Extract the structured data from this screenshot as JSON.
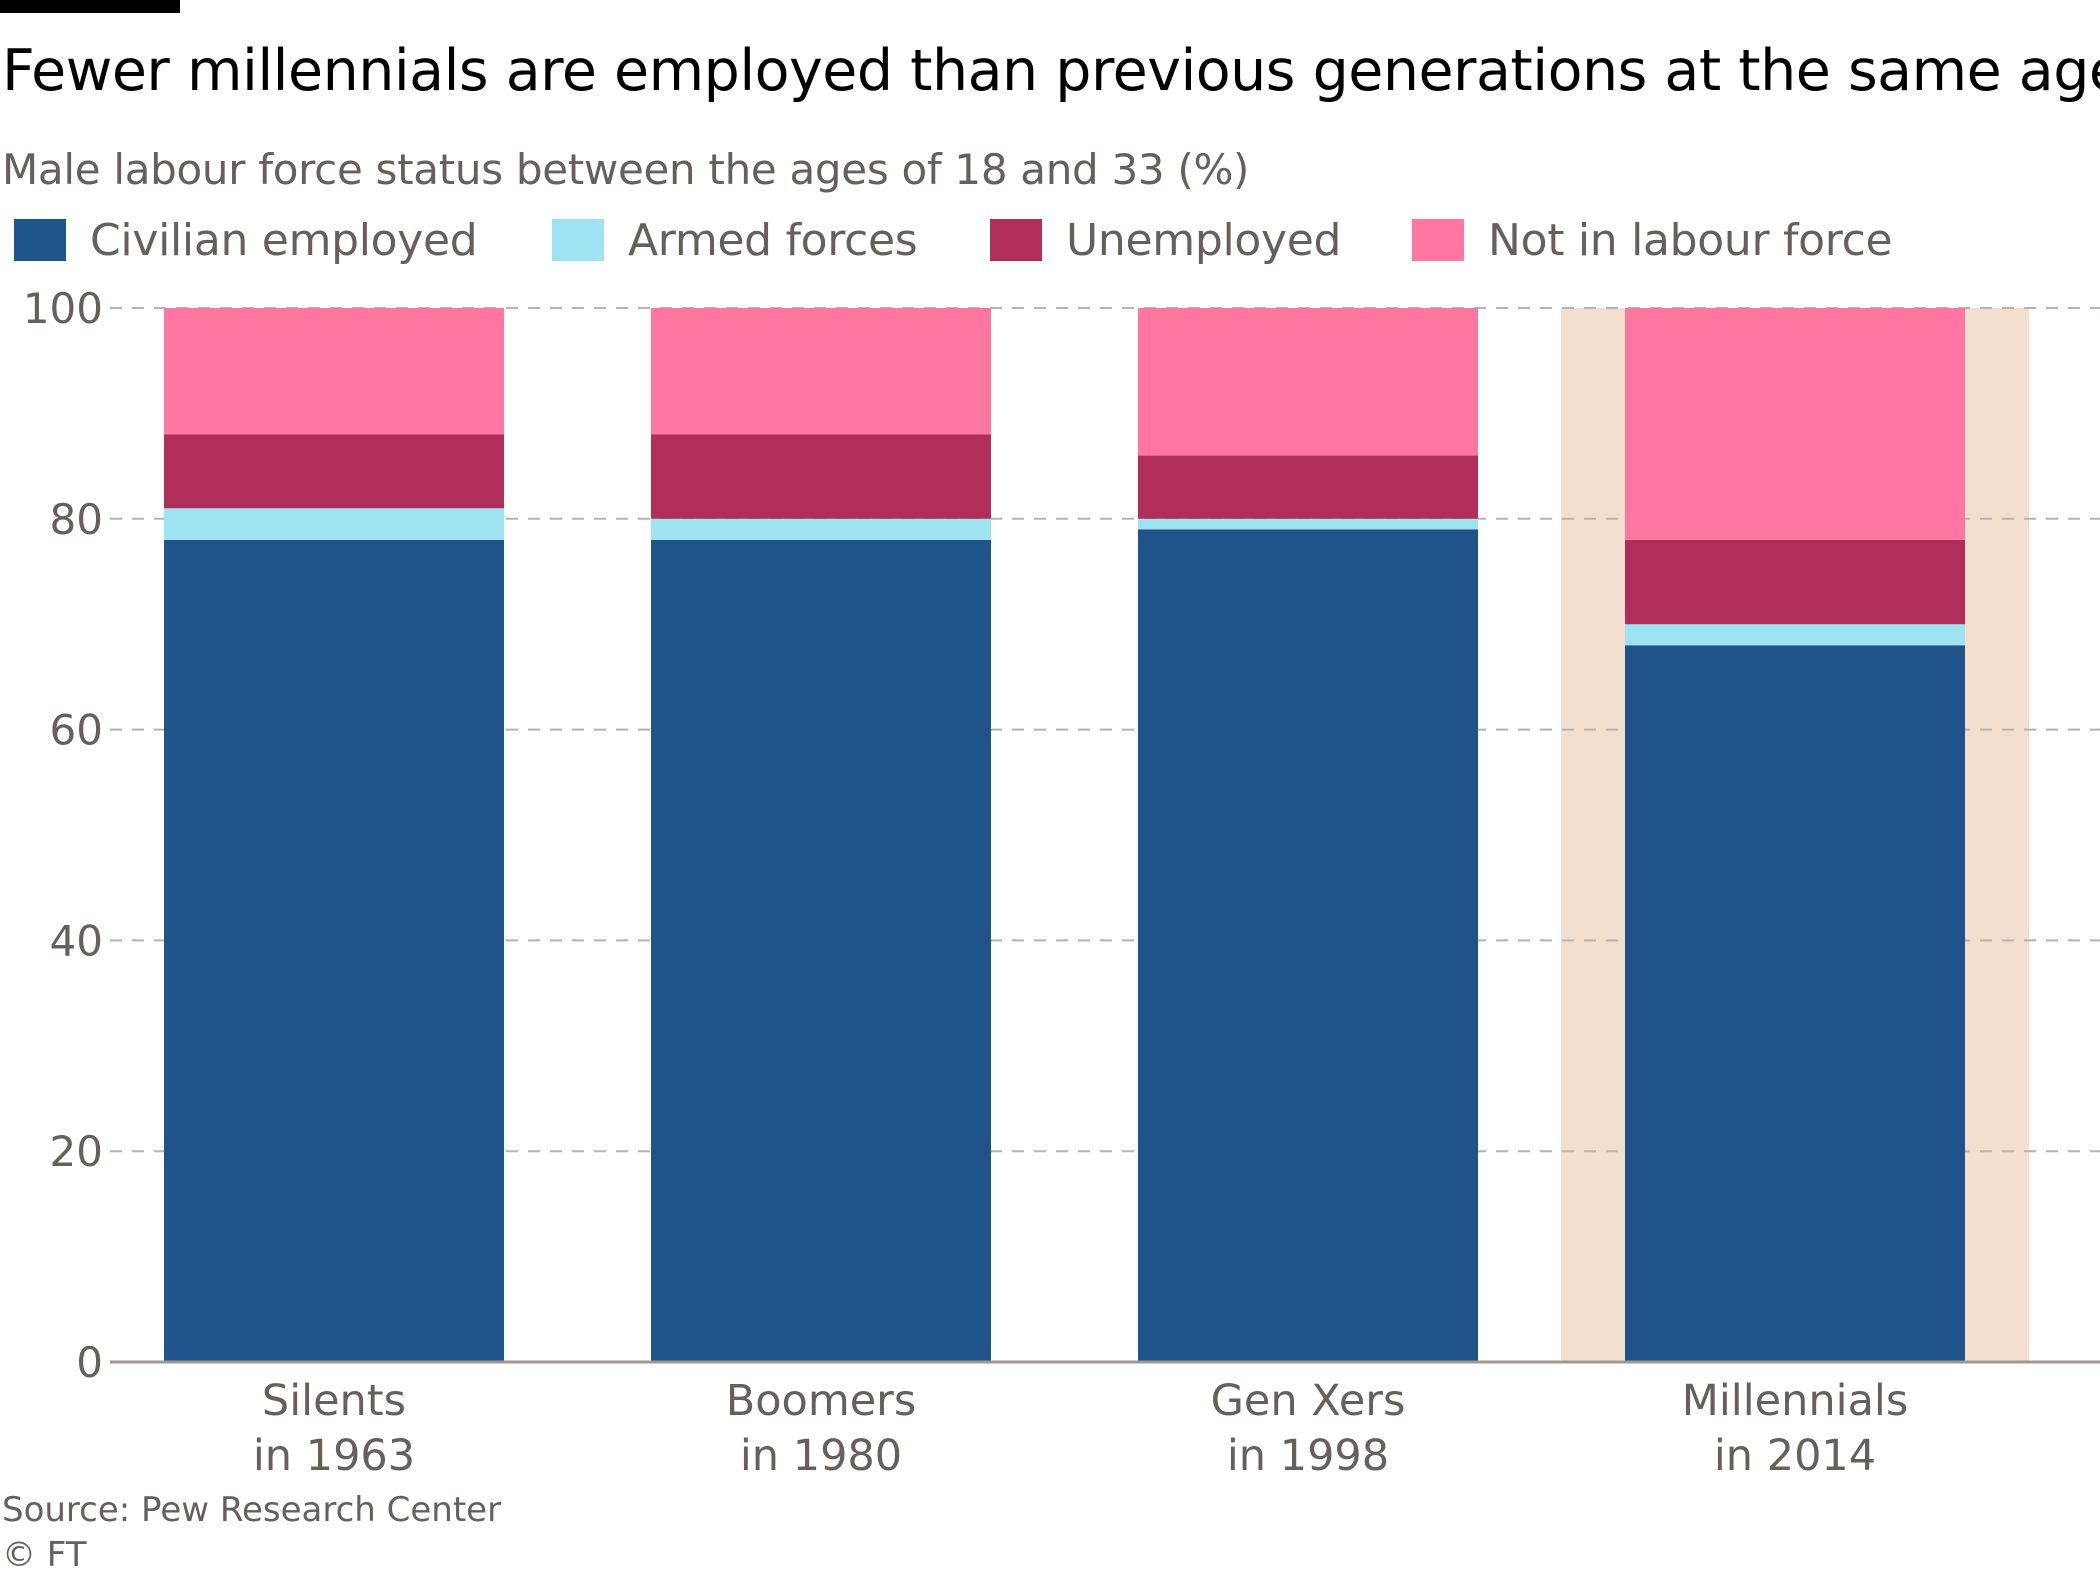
{
  "header": {
    "title": "Fewer millennials are employed than previous generations at the same age",
    "subtitle": "Male labour force status between the ages of 18 and 33 (%)"
  },
  "legend": [
    {
      "label": "Civilian employed",
      "color": "#1f548a"
    },
    {
      "label": "Armed forces",
      "color": "#9ee3f1"
    },
    {
      "label": "Unemployed",
      "color": "#b02e59"
    },
    {
      "label": "Not in labour force",
      "color": "#ff77a0"
    }
  ],
  "footer": {
    "source": "Source: Pew Research Center",
    "copyright": "© FT"
  },
  "chart_data": {
    "type": "bar",
    "stacked": true,
    "categories": [
      {
        "line1": "Silents",
        "line2": "in 1963"
      },
      {
        "line1": "Boomers",
        "line2": "in 1980"
      },
      {
        "line1": "Gen Xers",
        "line2": "in 1998"
      },
      {
        "line1": "Millennials",
        "line2": "in 2014"
      }
    ],
    "highlighted_category": 3,
    "highlight_color": "#f2dfce",
    "series": [
      {
        "name": "Civilian employed",
        "color": "#1f548a",
        "values": [
          78,
          78,
          79,
          68
        ]
      },
      {
        "name": "Armed forces",
        "color": "#9ee3f1",
        "values": [
          3,
          2,
          1,
          2
        ]
      },
      {
        "name": "Unemployed",
        "color": "#b02e59",
        "values": [
          7,
          8,
          6,
          8
        ]
      },
      {
        "name": "Not in labour force",
        "color": "#ff77a0",
        "values": [
          12,
          12,
          14,
          22
        ]
      }
    ],
    "yticks": [
      0,
      20,
      40,
      60,
      80,
      100
    ],
    "ylim": [
      0,
      100
    ],
    "grid": true,
    "legend_position": "top",
    "title": "Fewer millennials are employed than previous generations at the same age",
    "ylabel": "",
    "xlabel": ""
  }
}
